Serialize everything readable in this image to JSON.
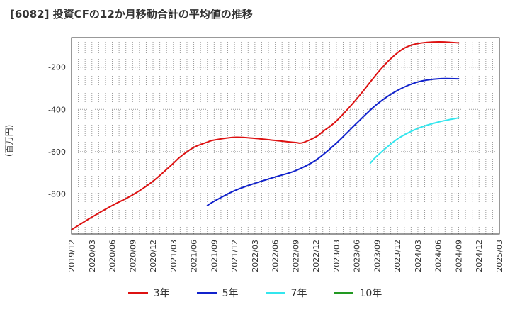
{
  "header": {
    "title": "[6082]  投資CFの12か月移動合計の平均値の推移"
  },
  "chart_data": {
    "type": "line",
    "title": "[6082]  投資CFの12か月移動合計の平均値の推移",
    "ylabel": "(百万円)",
    "xlabel": "",
    "x_ticks": [
      "2019/12",
      "2020/03",
      "2020/06",
      "2020/09",
      "2020/12",
      "2021/03",
      "2021/06",
      "2021/09",
      "2021/12",
      "2022/03",
      "2022/06",
      "2022/09",
      "2022/12",
      "2023/03",
      "2023/06",
      "2023/09",
      "2023/12",
      "2024/03",
      "2024/06",
      "2024/09",
      "2024/12",
      "2025/03"
    ],
    "y_ticks": [
      -200,
      -400,
      -600,
      -800
    ],
    "xlim": [
      "2019/12",
      "2025/03"
    ],
    "ylim": [
      -990,
      -60
    ],
    "grid": true,
    "legend_position": "bottom",
    "series": [
      {
        "name": "3年",
        "color": "#dd1111",
        "x": [
          "2019/12",
          "2020/03",
          "2020/06",
          "2020/09",
          "2020/12",
          "2021/03",
          "2021/04",
          "2021/06",
          "2021/08",
          "2021/09",
          "2021/12",
          "2022/03",
          "2022/06",
          "2022/09",
          "2022/10",
          "2022/12",
          "2023/01",
          "2023/03",
          "2023/06",
          "2023/09",
          "2023/11",
          "2024/01",
          "2024/03",
          "2024/06",
          "2024/09"
        ],
        "values": [
          -970,
          -910,
          -855,
          -805,
          -740,
          -655,
          -625,
          -580,
          -555,
          -545,
          -532,
          -537,
          -547,
          -557,
          -558,
          -530,
          -505,
          -455,
          -350,
          -230,
          -160,
          -110,
          -88,
          -80,
          -85
        ]
      },
      {
        "name": "5年",
        "color": "#1122cc",
        "x": [
          "2021/08",
          "2021/09",
          "2021/12",
          "2022/03",
          "2022/06",
          "2022/09",
          "2022/12",
          "2023/03",
          "2023/06",
          "2023/09",
          "2023/12",
          "2024/03",
          "2024/06",
          "2024/09"
        ],
        "values": [
          -855,
          -835,
          -785,
          -750,
          -720,
          -690,
          -640,
          -560,
          -465,
          -375,
          -310,
          -270,
          -255,
          -255
        ]
      },
      {
        "name": "7年",
        "color": "#33e6ee",
        "x": [
          "2023/08",
          "2023/09",
          "2023/12",
          "2024/03",
          "2024/06",
          "2024/09"
        ],
        "values": [
          -655,
          -620,
          -540,
          -490,
          -460,
          -440
        ]
      },
      {
        "name": "10年",
        "color": "#229922",
        "x": [],
        "values": []
      }
    ]
  }
}
